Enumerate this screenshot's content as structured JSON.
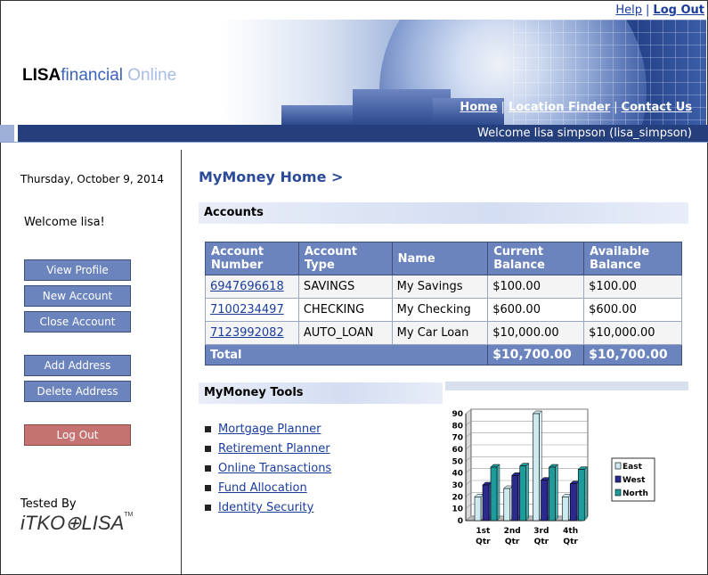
{
  "top_links": {
    "help": "Help",
    "separator": "|",
    "logout": "Log Out"
  },
  "brand": {
    "part1": "LISA",
    "part2": "financial",
    "part3": " Online"
  },
  "nav": {
    "home": "Home",
    "location_finder": "Location Finder",
    "contact_us": "Contact Us",
    "separator": "|"
  },
  "welcome_bar": "Welcome lisa simpson (lisa_simpson)",
  "sidebar": {
    "date": "Thursday, October 9, 2014",
    "welcome": "Welcome lisa!",
    "buttons": [
      "View Profile",
      "New Account",
      "Close Account",
      "Add Address",
      "Delete Address",
      "Log Out"
    ],
    "tested_by": "Tested By",
    "itko_logo": "iTKO⊕LISA",
    "itko_tm": "TM"
  },
  "main": {
    "title": "MyMoney Home >",
    "accounts_heading": "Accounts",
    "table": {
      "headers": [
        "Account Number",
        "Account Type",
        "Name",
        "Current Balance",
        "Available Balance"
      ],
      "rows": [
        [
          "6947696618",
          "SAVINGS",
          "My Savings",
          "$100.00",
          "$100.00"
        ],
        [
          "7100234497",
          "CHECKING",
          "My Checking",
          "$600.00",
          "$600.00"
        ],
        [
          "7123992082",
          "AUTO_LOAN",
          "My Car Loan",
          "$10,000.00",
          "$10,000.00"
        ]
      ],
      "total": {
        "label": "Total",
        "current": "$10,700.00",
        "available": "$10,700.00"
      }
    },
    "tools_heading": "MyMoney Tools",
    "tools": [
      "Mortgage Planner",
      "Retirement Planner",
      "Online Transactions",
      "Fund Allocation",
      "Identity Security"
    ]
  },
  "chart_data": {
    "type": "bar",
    "categories": [
      "1st Qtr",
      "2nd Qtr",
      "3rd Qtr",
      "4th Qtr"
    ],
    "series": [
      {
        "name": "East",
        "values": [
          20,
          27,
          90,
          20
        ],
        "color": "#cdeaf0"
      },
      {
        "name": "West",
        "values": [
          30,
          38,
          34,
          31
        ],
        "color": "#2b2a8f"
      },
      {
        "name": "North",
        "values": [
          45,
          46,
          45,
          43
        ],
        "color": "#1e9c9c"
      }
    ],
    "ylim": [
      0,
      90
    ],
    "yticks": [
      0,
      10,
      20,
      30,
      40,
      50,
      60,
      70,
      80,
      90
    ],
    "grid": true,
    "legend": "right"
  }
}
